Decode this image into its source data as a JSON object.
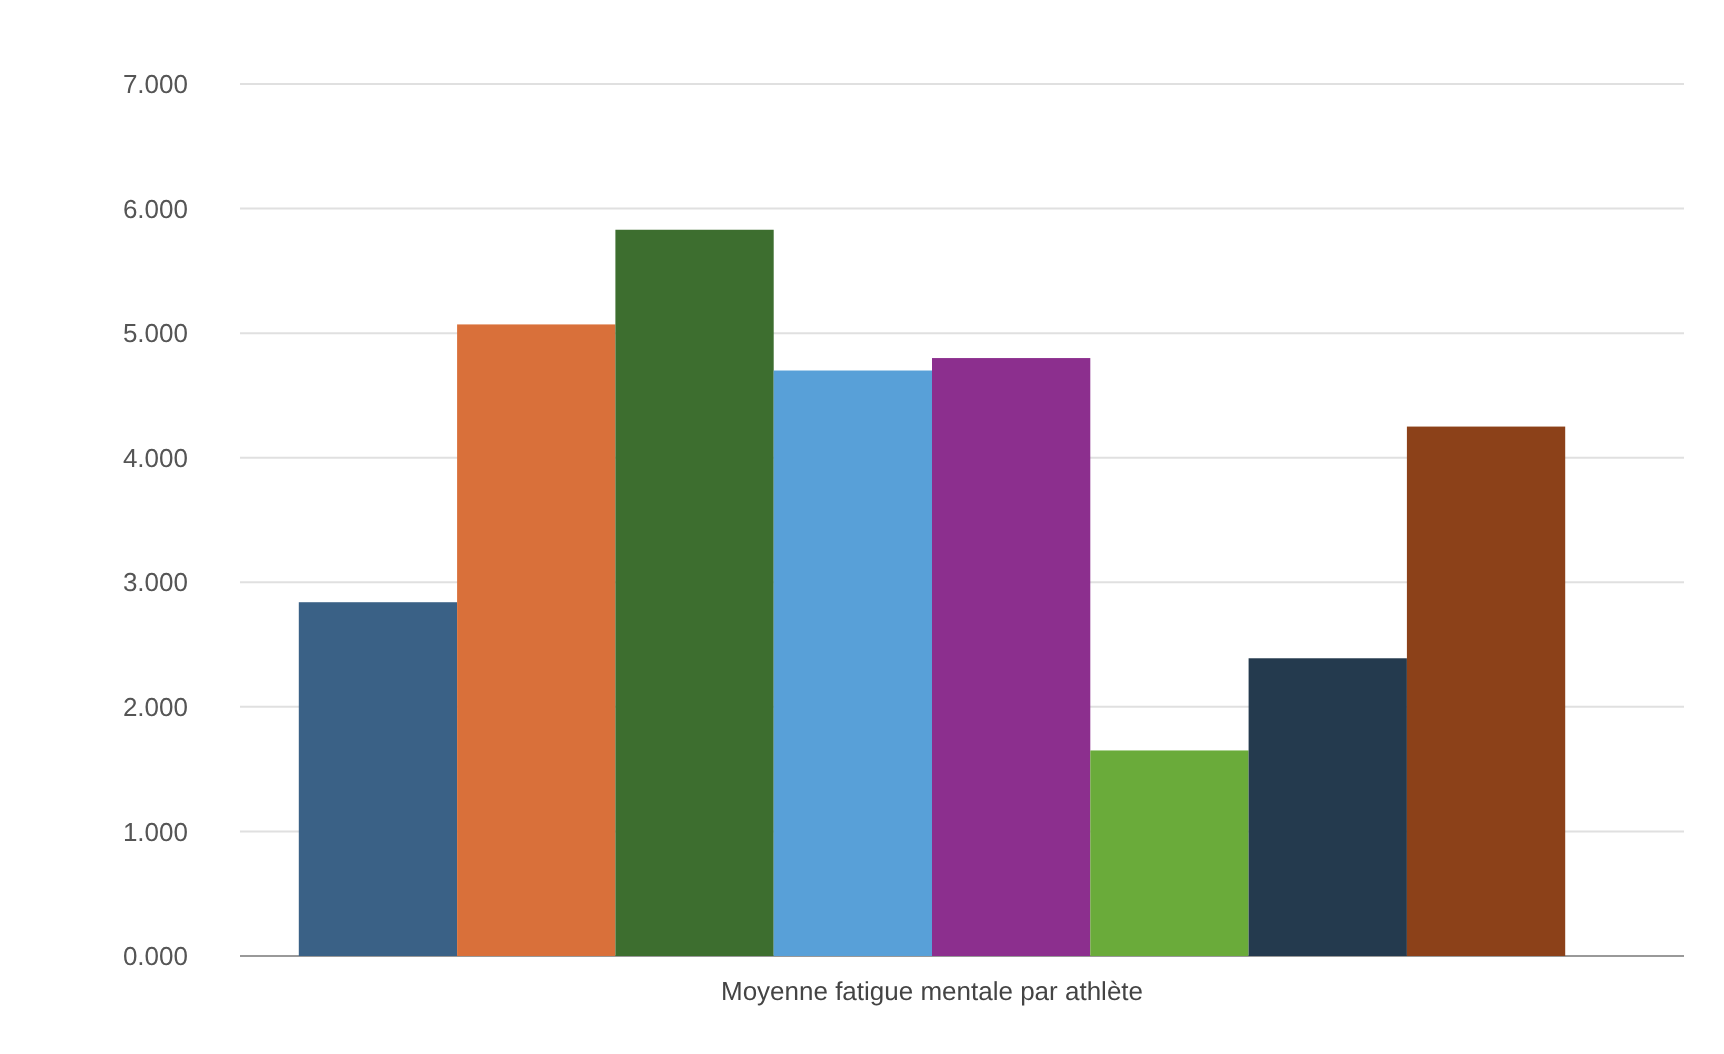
{
  "chart_data": {
    "type": "bar",
    "categories": [
      "Moyenne fatigue mentale par athlète"
    ],
    "series": [
      {
        "color": "#3a6186",
        "values": [
          2.84
        ]
      },
      {
        "color": "#d9703a",
        "values": [
          5.07
        ]
      },
      {
        "color": "#3d6e2f",
        "values": [
          5.83
        ]
      },
      {
        "color": "#58a0d8",
        "values": [
          4.7
        ]
      },
      {
        "color": "#8c2f8e",
        "values": [
          4.8
        ]
      },
      {
        "color": "#6aab3a",
        "values": [
          1.65
        ]
      },
      {
        "color": "#243a4e",
        "values": [
          2.39
        ]
      },
      {
        "color": "#8c4119",
        "values": [
          4.25
        ]
      }
    ],
    "ylim": [
      0,
      7
    ],
    "yticks": [
      {
        "value": 0,
        "label": "0.000"
      },
      {
        "value": 1,
        "label": "1.000"
      },
      {
        "value": 2,
        "label": "2.000"
      },
      {
        "value": 3,
        "label": "3.000"
      },
      {
        "value": 4,
        "label": "4.000"
      },
      {
        "value": 5,
        "label": "5.000"
      },
      {
        "value": 6,
        "label": "6.000"
      },
      {
        "value": 7,
        "label": "7.000"
      }
    ],
    "grid": "y"
  }
}
